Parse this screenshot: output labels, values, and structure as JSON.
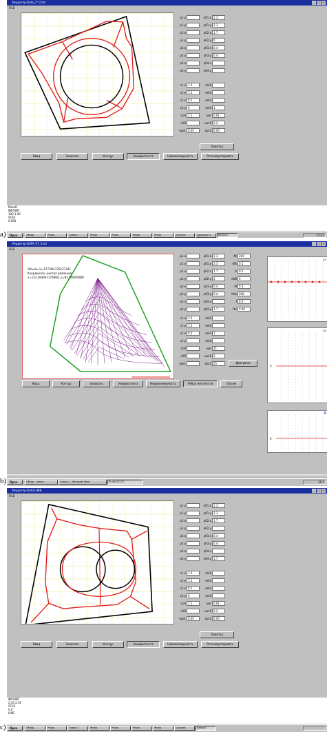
{
  "panels": [
    {
      "caption": "a)",
      "title": "Редактор-Data_3^2.txt",
      "menu": "FILE",
      "fields_left": [
        {
          "label": "p1.x",
          "value": ""
        },
        {
          "label": "p1.y",
          "value": ""
        },
        {
          "label": "p2.x",
          "value": ""
        },
        {
          "label": "p2.y",
          "value": ""
        },
        {
          "label": "p3.x",
          "value": ""
        },
        {
          "label": "p3.y",
          "value": ""
        },
        {
          "label": "p4.x",
          "value": ""
        },
        {
          "label": "p4.y",
          "value": ""
        }
      ],
      "fields_right": [
        {
          "label": "p01.x",
          "value": "2.3"
        },
        {
          "label": "p01.y",
          "value": "2.3"
        },
        {
          "label": "p02.x",
          "value": "1.7"
        },
        {
          "label": "p02.y",
          "value": "0"
        },
        {
          "label": "p03.x",
          "value": "0.4"
        },
        {
          "label": "p03.y",
          "value": "0.4"
        },
        {
          "label": "p04.x",
          "value": ""
        },
        {
          "label": "p04.y",
          "value": ""
        }
      ],
      "fields_left2": [
        {
          "label": "c1.x",
          "value": "1.5"
        },
        {
          "label": "c1.y",
          "value": "1.2"
        },
        {
          "label": "c2.x",
          "value": "0.5"
        },
        {
          "label": "c2.y",
          "value": "0"
        },
        {
          "label": "c1R",
          "value": "1.1"
        },
        {
          "label": "c2R",
          "value": ""
        },
        {
          "label": "eps1",
          "value": "0.05"
        }
      ],
      "fields_right2": [
        {
          "label": "del1",
          "value": ""
        },
        {
          "label": "del2",
          "value": ""
        },
        {
          "label": "del3",
          "value": ""
        },
        {
          "label": "del4",
          "value": "1"
        },
        {
          "label": "uwr",
          "value": "0.01"
        },
        {
          "label": "uwr1",
          "value": "0.2"
        },
        {
          "label": "eps2",
          "value": "0.05"
        }
      ],
      "extra_button": "Пометка",
      "buttons": [
        "Ввод",
        "Записать",
        "Контур",
        "Эквидистанта",
        "Неравномерность",
        "Отконвертировать"
      ],
      "status_lines": [
        "Менd1",
        "INPOINT",
        "100 1.00",
        "STEP",
        "0.005"
      ],
      "taskbar": {
        "start": "Пуск",
        "tasks": [
          "Обзор",
          "Photo",
          "Глава 7",
          "Photo",
          "Photo",
          "Photo",
          "Photo",
          "Docume",
          "Документ1",
          "Безым1"
        ],
        "clock": "15:45"
      }
    },
    {
      "caption": "b)",
      "title": "Редактор-D4FA_07_5.txt",
      "menu": "FILE",
      "overlay": [
        "Объем=V=677368.276237341",
        "Координаты центра давления",
        "x=133.283697176880; y=93.56959088?"
      ],
      "fields_left": [
        {
          "label": "p1.x",
          "value": ""
        },
        {
          "label": "p1.y",
          "value": ""
        },
        {
          "label": "p2.x",
          "value": ""
        },
        {
          "label": "p2.y",
          "value": ""
        },
        {
          "label": "p3.x",
          "value": ""
        },
        {
          "label": "p3.y",
          "value": ""
        },
        {
          "label": "p4.x",
          "value": ""
        },
        {
          "label": "p4.y",
          "value": ""
        }
      ],
      "fields_right": [
        {
          "label": "p01.x",
          "value": "2.3"
        },
        {
          "label": "p01.y",
          "value": "2.3"
        },
        {
          "label": "p02.x",
          "value": "1.7"
        },
        {
          "label": "p02.y",
          "value": "0"
        },
        {
          "label": "p03.x",
          "value": "0.4"
        },
        {
          "label": "p03.y",
          "value": "0.4"
        },
        {
          "label": "p04.x",
          "value": ""
        },
        {
          "label": "p04.y",
          "value": "1.7"
        }
      ],
      "fields_params": [
        {
          "label": "Nt",
          "value": "200"
        },
        {
          "label": "dfit",
          "value": "0.1"
        },
        {
          "label": "h",
          "value": "0.5"
        },
        {
          "label": "dhB",
          "value": "0"
        },
        {
          "label": "M",
          "value": "0.3"
        },
        {
          "label": "hhh",
          "value": "200"
        },
        {
          "label": "f",
          "value": "0.4"
        },
        {
          "label": "fks",
          "value": "0.00"
        }
      ],
      "fields_left2": [
        {
          "label": "c1.x",
          "value": "1.5"
        },
        {
          "label": "c1.y",
          "value": "1.2"
        },
        {
          "label": "c2.x",
          "value": "0.5"
        },
        {
          "label": "c2.y",
          "value": ""
        },
        {
          "label": "c1R",
          "value": ""
        },
        {
          "label": "c2R",
          "value": ""
        },
        {
          "label": "eps1",
          "value": ""
        }
      ],
      "fields_right2": [
        {
          "label": "del1",
          "value": ""
        },
        {
          "label": "del2",
          "value": ""
        },
        {
          "label": "del3",
          "value": "1"
        },
        {
          "label": "del4",
          "value": ""
        },
        {
          "label": "uwr",
          "value": "21"
        },
        {
          "label": "uwr1",
          "value": "2"
        },
        {
          "label": "eps2",
          "value": "25"
        }
      ],
      "extra_button": "Диаграмм",
      "buttons": [
        "Ввод",
        "Контур",
        "Записать",
        "Эквидистанта",
        "Неравномерность",
        "Рёбра жесткости",
        "Объем"
      ],
      "taskbar": {
        "start": "Пуск",
        "tasks": [
          "Обзор - папка",
          "Глава 7 - Microsoft Word",
          "Pr_dsc25_03"
        ],
        "clock": "16:2"
      }
    },
    {
      "caption": "c)",
      "title": "Редактор-Data5.888",
      "menu": "FILE",
      "fields_left": [
        {
          "label": "p1.x",
          "value": ""
        },
        {
          "label": "p1.y",
          "value": ""
        },
        {
          "label": "p2.x",
          "value": ""
        },
        {
          "label": "p2.y",
          "value": ""
        },
        {
          "label": "p3.x",
          "value": ""
        },
        {
          "label": "p3.y",
          "value": ""
        },
        {
          "label": "p4.x",
          "value": ""
        },
        {
          "label": "p4.y",
          "value": ""
        }
      ],
      "fields_right": [
        {
          "label": "p01.x",
          "value": "2.3"
        },
        {
          "label": "p01.y",
          "value": "2.3"
        },
        {
          "label": "p02.x",
          "value": "1.7"
        },
        {
          "label": "p02.y",
          "value": ""
        },
        {
          "label": "p03.x",
          "value": "0.4"
        },
        {
          "label": "p03.y",
          "value": "0.4"
        },
        {
          "label": "p04.x",
          "value": ""
        },
        {
          "label": "p04.y",
          "value": "1.7"
        }
      ],
      "fields_left2": [
        {
          "label": "c1.x",
          "value": "1.5"
        },
        {
          "label": "c1.y",
          "value": "1.2"
        },
        {
          "label": "c2.x",
          "value": "0.5"
        },
        {
          "label": "c2.y",
          "value": "0"
        },
        {
          "label": "c1R",
          "value": "1.1"
        },
        {
          "label": "c2R",
          "value": ""
        },
        {
          "label": "eps1",
          "value": "0.05"
        }
      ],
      "fields_right2": [
        {
          "label": "del1",
          "value": ""
        },
        {
          "label": "del2",
          "value": ""
        },
        {
          "label": "del3",
          "value": ""
        },
        {
          "label": "del4",
          "value": ""
        },
        {
          "label": "uwr",
          "value": "0.01"
        },
        {
          "label": "uwr1",
          "value": "0.2"
        },
        {
          "label": "eps2",
          "value": "0.05"
        }
      ],
      "extra_button": "Пометка",
      "buttons": [
        "Ввод",
        "Записать",
        "Контур",
        "Эквидистанта",
        "Неравномерность",
        "Отконвертировать"
      ],
      "status_lines": [
        "INPOINT",
        "2.30 2.30",
        "STEP",
        "0.0",
        "LINE"
      ],
      "taskbar": {
        "start": "Пуск",
        "tasks": [
          "Обзор",
          "Photo",
          "Глава 7",
          "Photo",
          "Photo",
          "Photo",
          "Photo",
          "Docume",
          "Безым1"
        ],
        "clock": ""
      }
    }
  ],
  "colors": {
    "titlebar": "#1a2ea0",
    "contour": "#000000",
    "equidistant": "#e02020",
    "grid": "#e8e870",
    "ribs": "#7a1a8a",
    "hull": "#20a020"
  }
}
